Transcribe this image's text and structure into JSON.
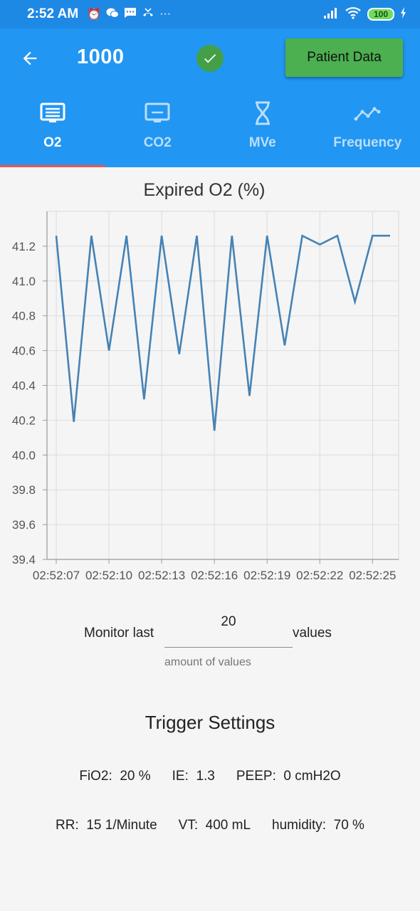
{
  "status_bar": {
    "time": "2:52 AM",
    "icons": [
      "alarm-icon",
      "wechat-icon",
      "message-icon",
      "missed-call-icon",
      "more-icon"
    ],
    "battery": "100"
  },
  "app_bar": {
    "title": "1000",
    "patient_button": "Patient Data",
    "status_color": "#43a047"
  },
  "tabs": [
    {
      "label": "O2",
      "icon": "monitor-icon",
      "active": true
    },
    {
      "label": "CO2",
      "icon": "display-icon",
      "active": false
    },
    {
      "label": "MVe",
      "icon": "hourglass-icon",
      "active": false
    },
    {
      "label": "Frequency",
      "icon": "trend-icon",
      "active": false
    }
  ],
  "chart_data": {
    "type": "line",
    "title": "Expired O2 (%)",
    "x": [
      "02:52:07",
      "02:52:08",
      "02:52:09",
      "02:52:10",
      "02:52:11",
      "02:52:12",
      "02:52:13",
      "02:52:14",
      "02:52:15",
      "02:52:16",
      "02:52:17",
      "02:52:18",
      "02:52:19",
      "02:52:20",
      "02:52:21",
      "02:52:22",
      "02:52:23",
      "02:52:24",
      "02:52:25",
      "02:52:26"
    ],
    "series": [
      {
        "values": [
          41.26,
          40.19,
          41.26,
          40.6,
          41.26,
          40.32,
          41.26,
          40.58,
          41.26,
          40.14,
          41.26,
          40.34,
          41.26,
          40.63,
          41.26,
          41.21,
          41.26,
          40.88,
          41.26,
          41.26
        ],
        "color": "#4682b4"
      }
    ],
    "ylim": [
      39.4,
      41.4
    ],
    "yticks": [
      "39.4",
      "39.6",
      "39.8",
      "40.0",
      "40.2",
      "40.4",
      "40.6",
      "40.8",
      "41.0",
      "41.2"
    ],
    "xticks": [
      "02:52:07",
      "02:52:10",
      "02:52:13",
      "02:52:16",
      "02:52:19",
      "02:52:22",
      "02:52:25"
    ],
    "grid": true
  },
  "monitor": {
    "prefix": "Monitor last",
    "value": "20",
    "suffix": "values",
    "helper": "amount of values"
  },
  "trigger": {
    "title": "Trigger Settings",
    "row1": [
      {
        "label": "FiO2:",
        "value": "20 %"
      },
      {
        "label": "IE:",
        "value": "1.3"
      },
      {
        "label": "PEEP:",
        "value": "0 cmH2O"
      }
    ],
    "row2": [
      {
        "label": "RR:",
        "value": "15 1/Minute"
      },
      {
        "label": "VT:",
        "value": "400 mL"
      },
      {
        "label": "humidity:",
        "value": "70 %"
      }
    ]
  }
}
